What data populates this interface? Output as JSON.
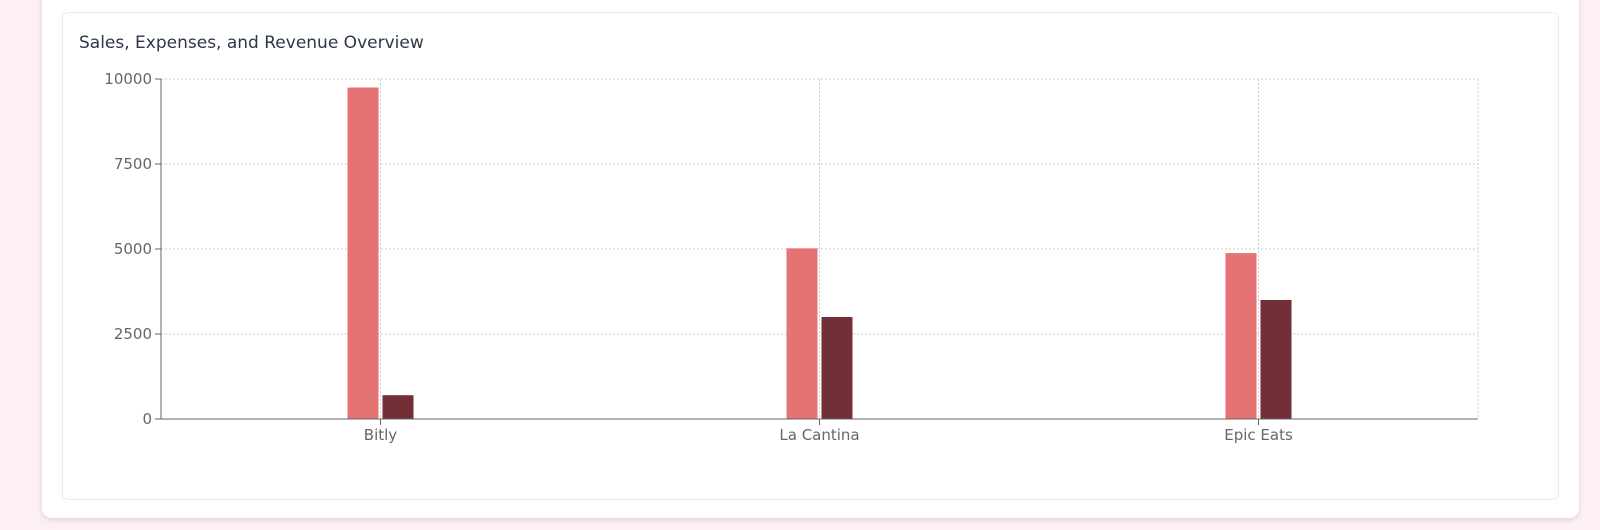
{
  "chart_data": {
    "type": "bar",
    "title": "Sales, Expenses, and Revenue Overview",
    "xlabel": "",
    "ylabel": "",
    "categories": [
      "Bitly",
      "La Cantina",
      "Epic Eats"
    ],
    "series": [
      {
        "values": [
          9750,
          5020,
          4880
        ],
        "color": "#e57373"
      },
      {
        "values": [
          700,
          3000,
          3500
        ],
        "color": "#722f37"
      }
    ],
    "ylim": [
      0,
      10000
    ],
    "yticks": [
      "0",
      "2500",
      "5000",
      "7500",
      "10000"
    ],
    "grid": true
  }
}
